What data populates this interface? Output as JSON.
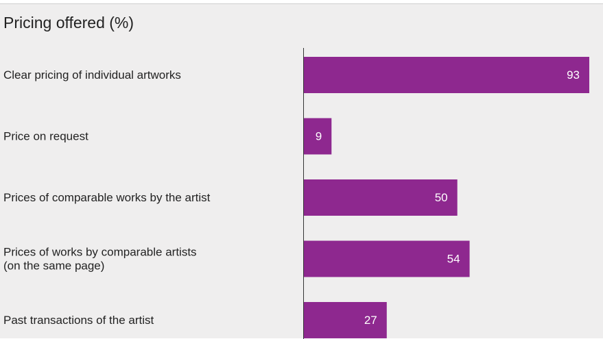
{
  "chart_data": {
    "type": "bar",
    "orientation": "horizontal",
    "title": "Pricing offered (%)",
    "xlabel": "",
    "ylabel": "",
    "xlim": [
      0,
      100
    ],
    "grid": false,
    "categories": [
      [
        "Clear pricing of individual artworks"
      ],
      [
        "Price on request"
      ],
      [
        "Prices of comparable works by the artist"
      ],
      [
        "Prices of works by comparable artists",
        "(on the same page)"
      ],
      [
        "Past transactions of the artist"
      ]
    ],
    "values": [
      93,
      9,
      50,
      54,
      27
    ],
    "data_labels": [
      "93",
      "9",
      "50",
      "54",
      "27"
    ],
    "bar_color": "#8e288f",
    "label_color": "#ffffff"
  }
}
